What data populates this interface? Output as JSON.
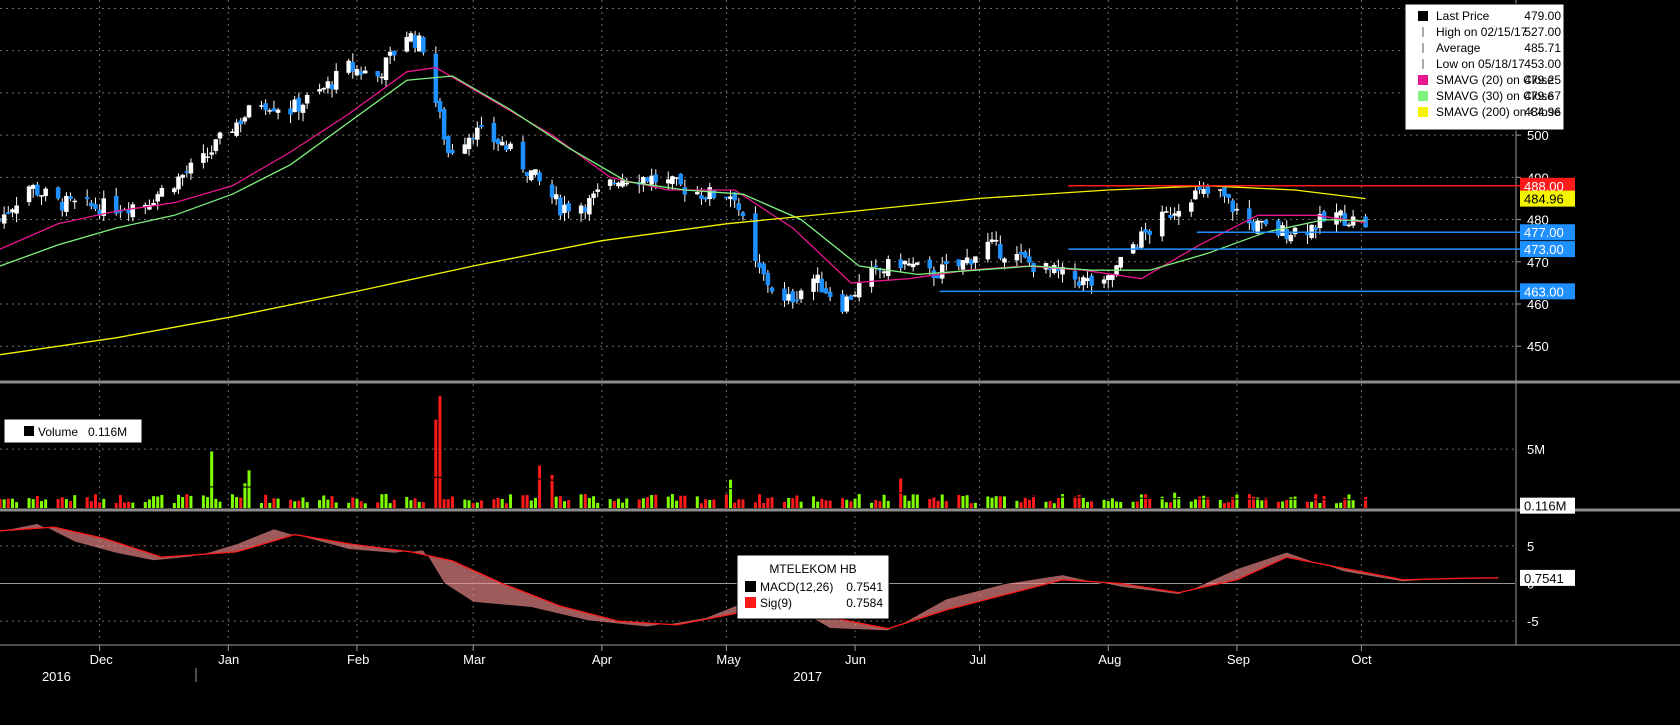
{
  "chart_data": [
    {
      "type": "candlestick",
      "panel": "price",
      "ylim": [
        442,
        532
      ],
      "y_ticks": [
        450,
        460,
        470,
        480,
        490,
        500,
        510,
        520,
        530
      ],
      "y_tick_labels": [
        "450",
        "460",
        "470",
        "480",
        "490",
        "500",
        "510",
        "520",
        "530"
      ],
      "grid": true,
      "legend": {
        "placement": "top-right",
        "entries": [
          {
            "label": "Last Price",
            "value": "479.00",
            "swatch": "#000000"
          },
          {
            "label": "High on 02/15/17",
            "value": "527.00",
            "swatch": "none"
          },
          {
            "label": "Average",
            "value": "485.71",
            "swatch": "none"
          },
          {
            "label": "Low on 05/18/17",
            "value": "453.00",
            "swatch": "none"
          },
          {
            "label": "SMAVG (20) on Close",
            "value": "479.25",
            "swatch": "#e8168c"
          },
          {
            "label": "SMAVG (30) on Close",
            "value": "479.67",
            "swatch": "#7ef27e"
          },
          {
            "label": "SMAVG (200) on Close",
            "value": "484.96",
            "swatch": "#f5f500"
          }
        ]
      },
      "horizontal_lines": [
        {
          "value": 488.0,
          "label": "488.00",
          "color": "#ff1a1a",
          "from_month": "Aug"
        },
        {
          "value": 477.0,
          "label": "477.00",
          "color": "#1e90ff",
          "from_month": "Sep"
        },
        {
          "value": 473.0,
          "label": "473.00",
          "color": "#1e90ff",
          "from_month": "Aug"
        },
        {
          "value": 463.0,
          "label": "463.00",
          "color": "#1e90ff",
          "from_month": "Jul"
        }
      ],
      "axis_tags": [
        {
          "value": 488.0,
          "label": "488.00",
          "bg": "#ff1a1a",
          "fg": "#ffffff"
        },
        {
          "value": 484.96,
          "label": "484.96",
          "bg": "#f5f500",
          "fg": "#000000"
        },
        {
          "value": 477.0,
          "label": "477.00",
          "bg": "#1e90ff",
          "fg": "#ffffff"
        },
        {
          "value": 473.0,
          "label": "473.00",
          "bg": "#1e90ff",
          "fg": "#ffffff"
        },
        {
          "value": 463.0,
          "label": "463.00",
          "bg": "#1e90ff",
          "fg": "#ffffff"
        }
      ],
      "candles": {
        "up_color": "#ffffff",
        "down_color": "#1e90ff",
        "close_anchors": [
          [
            "2016-11-07",
            480
          ],
          [
            "2016-11-14",
            488
          ],
          [
            "2016-11-21",
            484
          ],
          [
            "2016-11-28",
            483
          ],
          [
            "2016-12-05",
            483
          ],
          [
            "2016-12-12",
            484
          ],
          [
            "2016-12-19",
            489
          ],
          [
            "2016-12-26",
            494
          ],
          [
            "2017-01-02",
            502
          ],
          [
            "2017-01-09",
            508
          ],
          [
            "2017-01-16",
            506
          ],
          [
            "2017-01-23",
            510
          ],
          [
            "2017-01-30",
            516
          ],
          [
            "2017-02-06",
            514
          ],
          [
            "2017-02-13",
            524
          ],
          [
            "2017-02-17",
            521
          ],
          [
            "2017-02-20",
            508
          ],
          [
            "2017-02-23",
            496
          ],
          [
            "2017-03-01",
            501
          ],
          [
            "2017-03-08",
            498
          ],
          [
            "2017-03-15",
            491
          ],
          [
            "2017-03-22",
            483
          ],
          [
            "2017-03-29",
            484
          ],
          [
            "2017-04-05",
            490
          ],
          [
            "2017-04-12",
            490
          ],
          [
            "2017-04-19",
            488
          ],
          [
            "2017-04-26",
            486
          ],
          [
            "2017-05-03",
            486
          ],
          [
            "2017-05-08",
            469
          ],
          [
            "2017-05-15",
            460
          ],
          [
            "2017-05-22",
            466
          ],
          [
            "2017-05-29",
            460
          ],
          [
            "2017-06-05",
            467
          ],
          [
            "2017-06-12",
            470
          ],
          [
            "2017-06-19",
            467
          ],
          [
            "2017-06-26",
            469
          ],
          [
            "2017-07-03",
            474
          ],
          [
            "2017-07-10",
            471
          ],
          [
            "2017-07-17",
            468
          ],
          [
            "2017-07-24",
            466
          ],
          [
            "2017-07-31",
            464
          ],
          [
            "2017-08-07",
            474
          ],
          [
            "2017-08-14",
            480
          ],
          [
            "2017-08-21",
            486
          ],
          [
            "2017-08-28",
            486
          ],
          [
            "2017-09-04",
            479
          ],
          [
            "2017-09-11",
            477
          ],
          [
            "2017-09-18",
            478
          ],
          [
            "2017-09-25",
            481
          ],
          [
            "2017-10-02",
            479
          ]
        ]
      },
      "series": [
        {
          "name": "SMAVG (20) on Close",
          "color": "#e8168c",
          "values": [
            [
              "2016-11-07",
              473
            ],
            [
              "2016-11-21",
              479
            ],
            [
              "2016-12-05",
              482
            ],
            [
              "2016-12-19",
              484
            ],
            [
              "2017-01-02",
              488
            ],
            [
              "2017-01-16",
              496
            ],
            [
              "2017-01-30",
              505
            ],
            [
              "2017-02-13",
              515
            ],
            [
              "2017-02-20",
              516
            ],
            [
              "2017-03-06",
              508
            ],
            [
              "2017-03-20",
              500
            ],
            [
              "2017-04-03",
              490
            ],
            [
              "2017-04-17",
              487
            ],
            [
              "2017-05-03",
              487
            ],
            [
              "2017-05-17",
              478
            ],
            [
              "2017-05-31",
              465
            ],
            [
              "2017-06-14",
              466
            ],
            [
              "2017-06-28",
              468
            ],
            [
              "2017-07-12",
              469
            ],
            [
              "2017-07-26",
              468
            ],
            [
              "2017-08-09",
              466
            ],
            [
              "2017-08-23",
              474
            ],
            [
              "2017-09-06",
              481
            ],
            [
              "2017-09-20",
              481
            ],
            [
              "2017-10-02",
              479.25
            ]
          ]
        },
        {
          "name": "SMAVG (30) on Close",
          "color": "#7ef27e",
          "values": [
            [
              "2016-11-07",
              469
            ],
            [
              "2016-11-21",
              474
            ],
            [
              "2016-12-05",
              478
            ],
            [
              "2016-12-19",
              481
            ],
            [
              "2017-01-02",
              486
            ],
            [
              "2017-01-16",
              493
            ],
            [
              "2017-01-30",
              503
            ],
            [
              "2017-02-13",
              513
            ],
            [
              "2017-02-24",
              514
            ],
            [
              "2017-03-10",
              506
            ],
            [
              "2017-03-24",
              497
            ],
            [
              "2017-04-07",
              489
            ],
            [
              "2017-04-21",
              487
            ],
            [
              "2017-05-05",
              486
            ],
            [
              "2017-05-19",
              480
            ],
            [
              "2017-06-02",
              469
            ],
            [
              "2017-06-16",
              467
            ],
            [
              "2017-06-30",
              468
            ],
            [
              "2017-07-14",
              469
            ],
            [
              "2017-07-28",
              468
            ],
            [
              "2017-08-11",
              468
            ],
            [
              "2017-08-25",
              472
            ],
            [
              "2017-09-08",
              477
            ],
            [
              "2017-09-22",
              480
            ],
            [
              "2017-10-02",
              479.67
            ]
          ]
        },
        {
          "name": "SMAVG (200) on Close",
          "color": "#f5f500",
          "values": [
            [
              "2016-11-07",
              448
            ],
            [
              "2016-12-05",
              452
            ],
            [
              "2017-01-02",
              457
            ],
            [
              "2017-02-01",
              463
            ],
            [
              "2017-03-01",
              469
            ],
            [
              "2017-04-01",
              475
            ],
            [
              "2017-05-01",
              479
            ],
            [
              "2017-06-01",
              482
            ],
            [
              "2017-07-01",
              485
            ],
            [
              "2017-08-01",
              487
            ],
            [
              "2017-08-25",
              488
            ],
            [
              "2017-09-15",
              487
            ],
            [
              "2017-10-02",
              484.96
            ]
          ]
        }
      ]
    },
    {
      "type": "bar",
      "panel": "volume",
      "ylim": [
        0,
        10
      ],
      "y_ticks": [
        5
      ],
      "y_tick_labels": [
        "5M"
      ],
      "legend": {
        "placement": "top-left",
        "label": "Volume",
        "value": "0.116M"
      },
      "last_value_tag": "0.116M",
      "up_color": "#7fff00",
      "down_color": "#ff1a1a",
      "avg_line_color": "#000000",
      "spikes": [
        [
          "2016-12-28",
          4.8
        ],
        [
          "2017-02-21",
          9.5
        ],
        [
          "2017-02-20",
          7.5
        ],
        [
          "2017-03-17",
          3.6
        ],
        [
          "2017-01-05",
          2.1
        ],
        [
          "2017-05-02",
          2.4
        ],
        [
          "2017-06-12",
          2.5
        ],
        [
          "2017-08-17",
          1.3
        ],
        [
          "2017-01-06",
          3.2
        ],
        [
          "2017-03-20",
          2.8
        ]
      ]
    },
    {
      "type": "line",
      "panel": "macd",
      "ylim": [
        -7,
        9
      ],
      "y_ticks": [
        -5,
        0,
        5
      ],
      "y_tick_labels": [
        "-5",
        "0",
        "5"
      ],
      "legend": {
        "placement": "top-center",
        "title": "MTELEKOM HB",
        "entries": [
          {
            "label": "MACD(12,26)",
            "value": "0.7541",
            "swatch": "#000000"
          },
          {
            "label": "Sig(9)",
            "value": "0.7584",
            "swatch": "#ff1a1a"
          }
        ]
      },
      "last_value_tag": "0.7541",
      "series": [
        {
          "name": "MACD(12,26)",
          "color": "#000000",
          "values": [
            [
              "2016-11-07",
              7.0
            ],
            [
              "2016-11-16",
              8.0
            ],
            [
              "2016-11-25",
              5.5
            ],
            [
              "2016-12-05",
              4.0
            ],
            [
              "2016-12-14",
              3.0
            ],
            [
              "2016-12-23",
              3.5
            ],
            [
              "2017-01-03",
              5.3
            ],
            [
              "2017-01-12",
              7.3
            ],
            [
              "2017-01-20",
              6.0
            ],
            [
              "2017-01-30",
              4.5
            ],
            [
              "2017-02-10",
              4.0
            ],
            [
              "2017-02-17",
              4.5
            ],
            [
              "2017-02-22",
              0
            ],
            [
              "2017-03-01",
              -2.5
            ],
            [
              "2017-03-15",
              -3.2
            ],
            [
              "2017-03-29",
              -5.0
            ],
            [
              "2017-04-12",
              -5.8
            ],
            [
              "2017-04-26",
              -4.5
            ],
            [
              "2017-05-05",
              -2.5
            ],
            [
              "2017-05-10",
              -0.3
            ],
            [
              "2017-05-17",
              -3.2
            ],
            [
              "2017-05-26",
              -6.0
            ],
            [
              "2017-06-09",
              -6.3
            ],
            [
              "2017-06-23",
              -2.0
            ],
            [
              "2017-07-07",
              0
            ],
            [
              "2017-07-21",
              1.2
            ],
            [
              "2017-08-04",
              -0.5
            ],
            [
              "2017-08-18",
              -1.5
            ],
            [
              "2017-09-01",
              2.0
            ],
            [
              "2017-09-13",
              4.2
            ],
            [
              "2017-09-27",
              1.5
            ],
            [
              "2017-10-11",
              0.2
            ],
            [
              "2017-10-25",
              0.8
            ],
            [
              "2017-11-03",
              0.75
            ]
          ]
        },
        {
          "name": "Sig(9)",
          "color": "#ff1a1a",
          "values": [
            [
              "2016-11-07",
              7.0
            ],
            [
              "2016-11-20",
              7.5
            ],
            [
              "2016-12-02",
              6.0
            ],
            [
              "2016-12-16",
              3.5
            ],
            [
              "2017-01-03",
              4.2
            ],
            [
              "2017-01-17",
              6.5
            ],
            [
              "2017-01-31",
              5.2
            ],
            [
              "2017-02-14",
              4.2
            ],
            [
              "2017-02-24",
              3.0
            ],
            [
              "2017-03-08",
              0
            ],
            [
              "2017-03-22",
              -3.0
            ],
            [
              "2017-04-05",
              -5.0
            ],
            [
              "2017-04-19",
              -5.5
            ],
            [
              "2017-05-03",
              -4.0
            ],
            [
              "2017-05-12",
              -1.5
            ],
            [
              "2017-05-26",
              -4.5
            ],
            [
              "2017-06-09",
              -6.0
            ],
            [
              "2017-06-23",
              -3.5
            ],
            [
              "2017-07-07",
              -1.5
            ],
            [
              "2017-07-21",
              0.5
            ],
            [
              "2017-08-04",
              0
            ],
            [
              "2017-08-18",
              -1.2
            ],
            [
              "2017-09-01",
              0.5
            ],
            [
              "2017-09-13",
              3.5
            ],
            [
              "2017-09-27",
              2.0
            ],
            [
              "2017-10-11",
              0.5
            ],
            [
              "2017-10-25",
              0.7
            ],
            [
              "2017-11-03",
              0.7584
            ]
          ]
        }
      ]
    }
  ],
  "x_axis": {
    "months": [
      {
        "label": "Dec",
        "date": "2016-12-01"
      },
      {
        "label": "Jan",
        "date": "2017-01-01"
      },
      {
        "label": "Feb",
        "date": "2017-02-01"
      },
      {
        "label": "Mar",
        "date": "2017-03-01"
      },
      {
        "label": "Apr",
        "date": "2017-04-01"
      },
      {
        "label": "May",
        "date": "2017-05-01"
      },
      {
        "label": "Jun",
        "date": "2017-06-01"
      },
      {
        "label": "Jul",
        "date": "2017-07-01"
      },
      {
        "label": "Aug",
        "date": "2017-08-01"
      },
      {
        "label": "Sep",
        "date": "2017-09-01"
      },
      {
        "label": "Oct",
        "date": "2017-10-01"
      }
    ],
    "years": [
      {
        "label": "2016",
        "date": "2016-11-20"
      },
      {
        "label": "2017",
        "date": "2017-05-20"
      }
    ]
  }
}
